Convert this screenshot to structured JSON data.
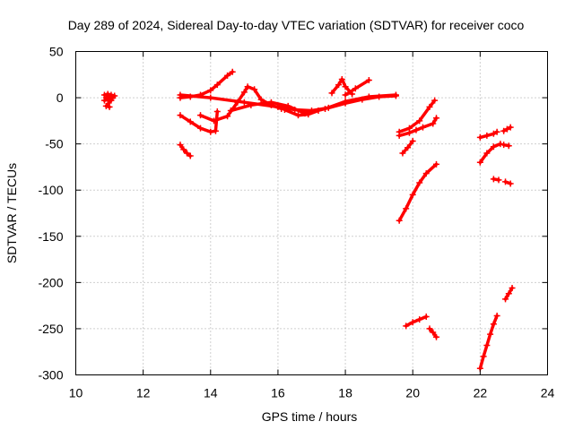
{
  "chart_data": {
    "type": "scatter",
    "title": "Day 289 of 2024, Sidereal Day-to-day VTEC variation (SDTVAR) for receiver coco",
    "xlabel": "GPS time / hours",
    "ylabel": "SDTVAR / TECUs",
    "xlim": [
      10,
      24
    ],
    "ylim": [
      -300,
      50
    ],
    "xticks": [
      10,
      12,
      14,
      16,
      18,
      20,
      22,
      24
    ],
    "yticks": [
      -300,
      -250,
      -200,
      -150,
      -100,
      -50,
      0,
      50
    ],
    "grid": true,
    "marker": "+",
    "color": "#ff0000",
    "series": [
      {
        "name": "cluster-11h",
        "x": [
          10.85,
          10.95,
          11.05,
          11.15,
          10.9,
          11.0,
          11.1,
          10.85,
          10.95,
          11.05,
          10.9,
          11.0
        ],
        "y": [
          3,
          4,
          3,
          2,
          0,
          1,
          0,
          -3,
          -2,
          -3,
          -9,
          -10
        ]
      },
      {
        "name": "arc-13-14h",
        "x": [
          13.1,
          13.4,
          13.7,
          14.0,
          14.2,
          14.5,
          14.65
        ],
        "y": [
          0,
          1,
          3,
          8,
          14,
          24,
          28
        ]
      },
      {
        "name": "arc-low-13-14h",
        "x": [
          13.1,
          13.4,
          13.7,
          14.0,
          14.15,
          14.2
        ],
        "y": [
          -19,
          -26,
          -33,
          -37,
          -36,
          -15
        ]
      },
      {
        "name": "short-13h",
        "x": [
          13.1,
          13.2,
          13.3,
          13.4
        ],
        "y": [
          -51,
          -56,
          -60,
          -63
        ]
      },
      {
        "name": "hump-15h",
        "x": [
          13.7,
          14.1,
          14.5,
          14.8,
          15.0,
          15.1,
          15.3,
          15.5,
          15.8,
          16.1
        ],
        "y": [
          -19,
          -25,
          -20,
          -5,
          6,
          12,
          9,
          -2,
          -8,
          -12
        ]
      },
      {
        "name": "band-main",
        "x": [
          13.1,
          14.0,
          15.0,
          16.0,
          16.5,
          17.0,
          17.5,
          18.0,
          18.5,
          19.0,
          19.5
        ],
        "y": [
          3,
          0,
          -5,
          -10,
          -13,
          -14,
          -11,
          -6,
          -2,
          1,
          2
        ]
      },
      {
        "name": "band-upper",
        "x": [
          14.6,
          15.2,
          15.8,
          16.3,
          16.8,
          17.4,
          18.0,
          18.7,
          19.5
        ],
        "y": [
          -14,
          -8,
          -5,
          -9,
          -17,
          -12,
          -4,
          1,
          3
        ]
      },
      {
        "name": "dip-16-17h",
        "x": [
          16.2,
          16.6,
          16.9,
          17.2
        ],
        "y": [
          -13,
          -19,
          -18,
          -14
        ]
      },
      {
        "name": "spike-18h",
        "x": [
          17.6,
          17.8,
          17.9,
          18.0,
          18.2
        ],
        "y": [
          5,
          14,
          20,
          12,
          4
        ]
      },
      {
        "name": "rise-18-19h",
        "x": [
          18.0,
          18.3,
          18.7
        ],
        "y": [
          3,
          10,
          19
        ]
      },
      {
        "name": "arc-20h-upper",
        "x": [
          19.6,
          19.9,
          20.2,
          20.5,
          20.65
        ],
        "y": [
          -37,
          -33,
          -25,
          -10,
          -3
        ]
      },
      {
        "name": "arc-20h-mid",
        "x": [
          19.6,
          19.9,
          20.1,
          20.3,
          20.6,
          20.7
        ],
        "y": [
          -41,
          -38,
          -35,
          -32,
          -28,
          -22
        ]
      },
      {
        "name": "short-20h",
        "x": [
          19.7,
          19.85,
          20.0
        ],
        "y": [
          -60,
          -54,
          -47
        ]
      },
      {
        "name": "arc-20h-long",
        "x": [
          19.6,
          19.8,
          20.0,
          20.2,
          20.4,
          20.7
        ],
        "y": [
          -133,
          -120,
          -105,
          -92,
          -82,
          -72
        ]
      },
      {
        "name": "arc-20h-bottom",
        "x": [
          19.8,
          20.0,
          20.2,
          20.4
        ],
        "y": [
          -247,
          -243,
          -240,
          -237
        ]
      },
      {
        "name": "tail-20h-bottom",
        "x": [
          20.5,
          20.6,
          20.7
        ],
        "y": [
          -250,
          -254,
          -259
        ]
      },
      {
        "name": "arc-22h-upper",
        "x": [
          22.0,
          22.2,
          22.4,
          22.5
        ],
        "y": [
          -43,
          -41,
          -39,
          -37
        ]
      },
      {
        "name": "tail-22h-upper",
        "x": [
          22.7,
          22.8,
          22.9
        ],
        "y": [
          -36,
          -34,
          -32
        ]
      },
      {
        "name": "arc-22h-mid",
        "x": [
          22.0,
          22.2,
          22.4,
          22.6
        ],
        "y": [
          -70,
          -60,
          -53,
          -50
        ]
      },
      {
        "name": "tail-22h-mid",
        "x": [
          22.7,
          22.85
        ],
        "y": [
          -51,
          -52
        ]
      },
      {
        "name": "short-22h",
        "x": [
          22.4,
          22.55
        ],
        "y": [
          -88,
          -89
        ]
      },
      {
        "name": "tail-22h-low",
        "x": [
          22.75,
          22.9
        ],
        "y": [
          -91,
          -93
        ]
      },
      {
        "name": "arc-22h-bottom",
        "x": [
          22.0,
          22.1,
          22.2,
          22.3,
          22.4,
          22.5
        ],
        "y": [
          -293,
          -280,
          -268,
          -256,
          -245,
          -236
        ]
      },
      {
        "name": "tail-22h-bottom",
        "x": [
          22.75,
          22.85,
          22.95
        ],
        "y": [
          -218,
          -212,
          -206
        ]
      }
    ]
  }
}
